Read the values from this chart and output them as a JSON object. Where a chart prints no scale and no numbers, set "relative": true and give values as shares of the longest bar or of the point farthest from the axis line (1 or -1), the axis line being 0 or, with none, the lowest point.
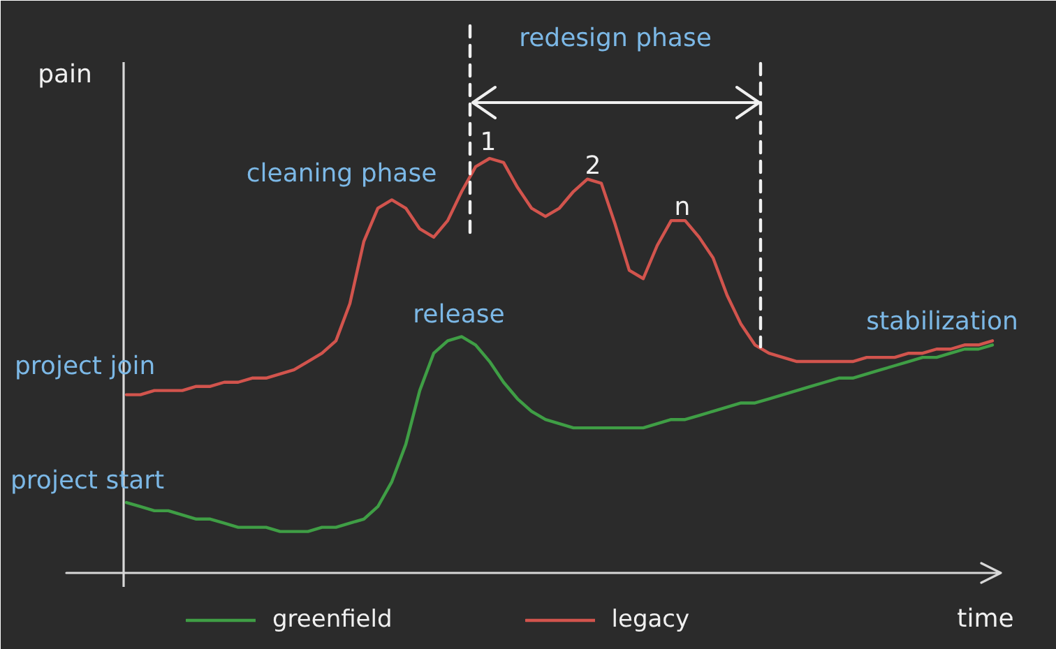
{
  "chart_data": {
    "type": "line",
    "xlabel": "time",
    "ylabel": "pain",
    "relative": true,
    "legend": "bottom",
    "categories": [
      null,
      null,
      null,
      null,
      null,
      null,
      null,
      null,
      null,
      null,
      null,
      null,
      null,
      null,
      null,
      null,
      null,
      null,
      null,
      null,
      null,
      null,
      null,
      null,
      null,
      null,
      null,
      null,
      null,
      null,
      null,
      null,
      null,
      null,
      null,
      null,
      null,
      null,
      null,
      null,
      null,
      null,
      null,
      null,
      null,
      null,
      null,
      null,
      null,
      null,
      null,
      null,
      null,
      null,
      null,
      null,
      null,
      null,
      null,
      null,
      null,
      null,
      null
    ],
    "series": [
      {
        "name": "greenfield",
        "color": "#3f9e45",
        "values": [
          0.17,
          0.16,
          0.15,
          0.15,
          0.14,
          0.13,
          0.13,
          0.12,
          0.11,
          0.11,
          0.11,
          0.1,
          0.1,
          0.1,
          0.11,
          0.11,
          0.12,
          0.13,
          0.16,
          0.22,
          0.31,
          0.44,
          0.53,
          0.56,
          0.57,
          0.55,
          0.51,
          0.46,
          0.42,
          0.39,
          0.37,
          0.36,
          0.35,
          0.35,
          0.35,
          0.35,
          0.35,
          0.35,
          0.36,
          0.37,
          0.37,
          0.38,
          0.39,
          0.4,
          0.41,
          0.41,
          0.42,
          0.43,
          0.44,
          0.45,
          0.46,
          0.47,
          0.47,
          0.48,
          0.49,
          0.5,
          0.51,
          0.52,
          0.52,
          0.53,
          0.54,
          0.54,
          0.55
        ]
      },
      {
        "name": "legacy",
        "color": "#d2544d",
        "values": [
          0.43,
          0.43,
          0.44,
          0.44,
          0.44,
          0.45,
          0.45,
          0.46,
          0.46,
          0.47,
          0.47,
          0.48,
          0.49,
          0.51,
          0.53,
          0.56,
          0.65,
          0.8,
          0.88,
          0.9,
          0.88,
          0.83,
          0.81,
          0.85,
          0.92,
          0.98,
          1.0,
          0.99,
          0.93,
          0.88,
          0.86,
          0.88,
          0.92,
          0.95,
          0.94,
          0.84,
          0.73,
          0.71,
          0.79,
          0.85,
          0.85,
          0.81,
          0.76,
          0.67,
          0.6,
          0.55,
          0.53,
          0.52,
          0.51,
          0.51,
          0.51,
          0.51,
          0.51,
          0.52,
          0.52,
          0.52,
          0.53,
          0.53,
          0.54,
          0.54,
          0.55,
          0.55,
          0.56
        ]
      }
    ],
    "annotations": [
      "project join",
      "project start",
      "cleaning phase",
      "release",
      "1",
      "2",
      "n",
      "redesign phase",
      "stabilization"
    ]
  }
}
